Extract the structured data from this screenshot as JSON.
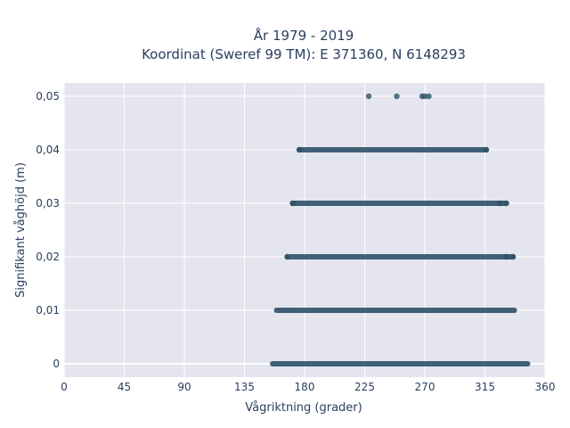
{
  "chart_data": {
    "type": "scatter",
    "title": "År 1979 - 2019",
    "subtitle": "Koordinat (Sweref 99 TM): E 371360, N 6148293",
    "xlabel": "Vågriktning (grader)",
    "ylabel": "Signifikant våghöjd (m)",
    "xlim": [
      0,
      360
    ],
    "ylim": [
      -0.0025,
      0.0525
    ],
    "x_ticks": [
      0,
      45,
      90,
      135,
      180,
      225,
      270,
      315,
      360
    ],
    "x_tick_labels": [
      "0",
      "45",
      "90",
      "135",
      "180",
      "225",
      "270",
      "315",
      "360"
    ],
    "y_ticks": [
      0,
      0.01,
      0.02,
      0.03,
      0.04,
      0.05
    ],
    "y_tick_labels": [
      "0",
      "0,01",
      "0,02",
      "0,03",
      "0,04",
      "0,05"
    ],
    "grid": true,
    "legend": "none",
    "point_color": "#2e5068",
    "plot_background": "#e5e5ef",
    "series": [
      {
        "points_extents": [
          {
            "y": 0.0,
            "x_min": 156,
            "x_max": 347
          },
          {
            "y": 0.01,
            "x_min": 159,
            "x_max": 337
          },
          {
            "y": 0.02,
            "x_min": 167,
            "x_max": 336
          },
          {
            "y": 0.03,
            "x_min": 171,
            "x_max": 331
          },
          {
            "y": 0.04,
            "x_min": 176,
            "x_max": 316
          }
        ],
        "points": [
          {
            "x": 228,
            "y": 0.05
          },
          {
            "x": 249,
            "y": 0.05
          },
          {
            "x": 268,
            "y": 0.05
          },
          {
            "x": 270,
            "y": 0.05
          },
          {
            "x": 273,
            "y": 0.05
          },
          {
            "x": 176,
            "y": 0.04
          },
          {
            "x": 316,
            "y": 0.04
          },
          {
            "x": 171,
            "y": 0.03
          },
          {
            "x": 326,
            "y": 0.03
          },
          {
            "x": 331,
            "y": 0.03
          },
          {
            "x": 167,
            "y": 0.02
          },
          {
            "x": 331,
            "y": 0.02
          },
          {
            "x": 336,
            "y": 0.02
          }
        ]
      }
    ]
  }
}
